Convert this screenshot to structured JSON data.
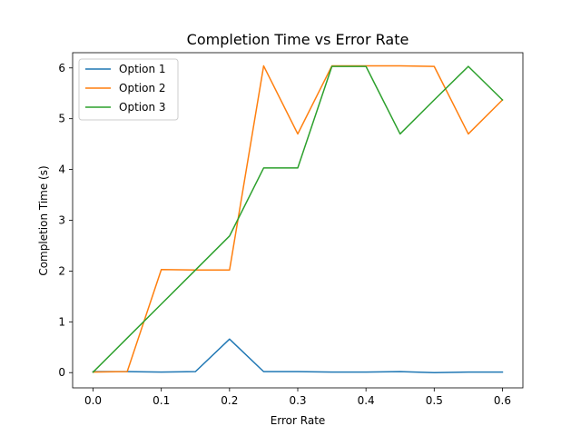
{
  "chart_data": {
    "type": "line",
    "title": "Completion Time vs Error Rate",
    "xlabel": "Error Rate",
    "ylabel": "Completion Time (s)",
    "x": [
      0.0,
      0.05,
      0.1,
      0.15,
      0.2,
      0.25,
      0.3,
      0.35,
      0.4,
      0.45,
      0.5,
      0.55,
      0.6
    ],
    "xlim": [
      -0.03,
      0.63
    ],
    "ylim": [
      -0.3,
      6.3
    ],
    "xticks": [
      "0.0",
      "0.1",
      "0.2",
      "0.3",
      "0.4",
      "0.5",
      "0.6"
    ],
    "xtick_values": [
      0.0,
      0.1,
      0.2,
      0.3,
      0.4,
      0.5,
      0.6
    ],
    "yticks": [
      "0",
      "1",
      "2",
      "3",
      "4",
      "5",
      "6"
    ],
    "ytick_values": [
      0,
      1,
      2,
      3,
      4,
      5,
      6
    ],
    "grid": false,
    "legend_position": "top-left",
    "series": [
      {
        "name": "Option 1",
        "color": "#1f77b4",
        "values": [
          0.02,
          0.02,
          0.01,
          0.02,
          0.66,
          0.02,
          0.02,
          0.01,
          0.01,
          0.02,
          0.0,
          0.01,
          0.01
        ]
      },
      {
        "name": "Option 2",
        "color": "#ff7f0e",
        "values": [
          0.01,
          0.02,
          2.03,
          2.02,
          2.02,
          6.04,
          4.7,
          6.04,
          6.04,
          6.04,
          6.03,
          4.7,
          5.37
        ]
      },
      {
        "name": "Option 3",
        "color": "#2ca02c",
        "values": [
          0.01,
          0.68,
          1.35,
          2.02,
          2.69,
          4.03,
          4.03,
          6.03,
          6.03,
          4.7,
          5.37,
          6.03,
          5.37
        ]
      }
    ]
  }
}
